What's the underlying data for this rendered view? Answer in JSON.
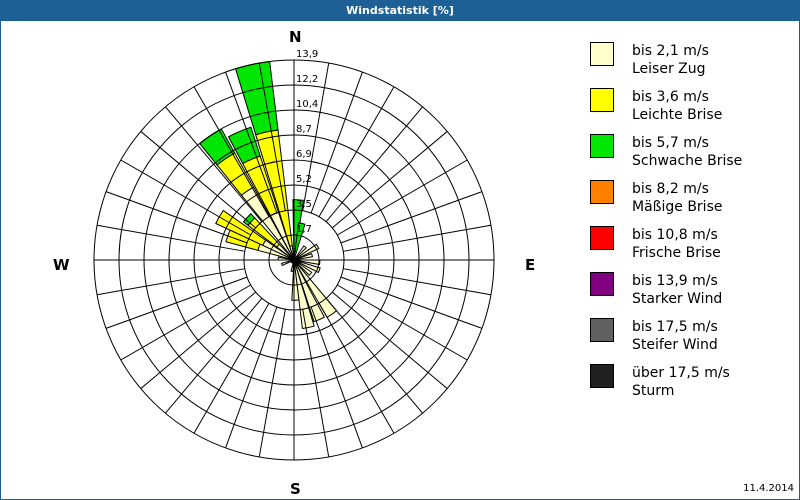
{
  "window": {
    "title": "Windstatistik [%]",
    "date": "11.4.2014"
  },
  "compass": {
    "n": "N",
    "e": "E",
    "s": "S",
    "w": "W"
  },
  "legend": [
    {
      "speed": "bis 2,1 m/s",
      "name": "Leiser Zug",
      "color": "#ffffcc"
    },
    {
      "speed": "bis 3,6 m/s",
      "name": "Leichte Brise",
      "color": "#ffff00"
    },
    {
      "speed": "bis 5,7 m/s",
      "name": "Schwache Brise",
      "color": "#00e600"
    },
    {
      "speed": "bis 8,2 m/s",
      "name": "Mäßige Brise",
      "color": "#ff8000"
    },
    {
      "speed": "bis 10,8 m/s",
      "name": "Frische Brise",
      "color": "#ff0000"
    },
    {
      "speed": "bis 13,9 m/s",
      "name": "Starker Wind",
      "color": "#800080"
    },
    {
      "speed": "bis 17,5 m/s",
      "name": "Steifer Wind",
      "color": "#606060"
    },
    {
      "speed": "über 17,5 m/s",
      "name": "Sturm",
      "color": "#202020"
    }
  ],
  "chart_data": {
    "type": "wind-rose",
    "title": "Windstatistik [%]",
    "unit": "%",
    "rmax": 13.9,
    "ring_labels": [
      "1,7",
      "3,5",
      "5,2",
      "6,9",
      "8,7",
      "10,4",
      "12,2",
      "13,9"
    ],
    "sector_width_deg": 10,
    "series_order": [
      "Leiser Zug",
      "Leichte Brise",
      "Schwache Brise"
    ],
    "petals": [
      {
        "dir": 348,
        "cum": [
          1.0,
          9.1,
          13.9
        ]
      },
      {
        "dir": 337,
        "cum": [
          3.5,
          7.6,
          9.7
        ]
      },
      {
        "dir": 326,
        "cum": [
          5.8,
          8.5,
          10.4
        ]
      },
      {
        "dir": 312,
        "cum": [
          1.5,
          4.0,
          4.4
        ]
      },
      {
        "dir": 300,
        "cum": [
          2.4,
          6.0,
          6.0
        ]
      },
      {
        "dir": 290,
        "cum": [
          2.6,
          4.9,
          4.9
        ]
      },
      {
        "dir": 4,
        "cum": [
          0.8,
          0.8,
          4.2
        ]
      },
      {
        "dir": 12,
        "cum": [
          0.6,
          0.6,
          2.6
        ]
      },
      {
        "dir": 40,
        "cum": [
          1.2,
          1.2,
          1.2
        ]
      },
      {
        "dir": 60,
        "cum": [
          1.9,
          1.9,
          1.9
        ]
      },
      {
        "dir": 75,
        "cum": [
          1.3,
          1.3,
          1.3
        ]
      },
      {
        "dir": 95,
        "cum": [
          1.8,
          1.8,
          1.8
        ]
      },
      {
        "dir": 112,
        "cum": [
          1.9,
          1.9,
          1.9
        ]
      },
      {
        "dir": 130,
        "cum": [
          1.5,
          1.5,
          1.5
        ]
      },
      {
        "dir": 145,
        "cum": [
          4.6,
          4.6,
          4.6
        ]
      },
      {
        "dir": 157,
        "cum": [
          4.5,
          4.5,
          4.5
        ]
      },
      {
        "dir": 168,
        "cum": [
          4.8,
          4.8,
          4.8
        ]
      },
      {
        "dir": 178,
        "cum": [
          2.8,
          2.8,
          2.8
        ]
      },
      {
        "dir": 190,
        "cum": [
          0.8,
          0.8,
          0.8
        ]
      },
      {
        "dir": 250,
        "cum": [
          0.9,
          0.9,
          0.9
        ]
      },
      {
        "dir": 275,
        "cum": [
          1.1,
          1.1,
          1.1
        ]
      }
    ]
  }
}
